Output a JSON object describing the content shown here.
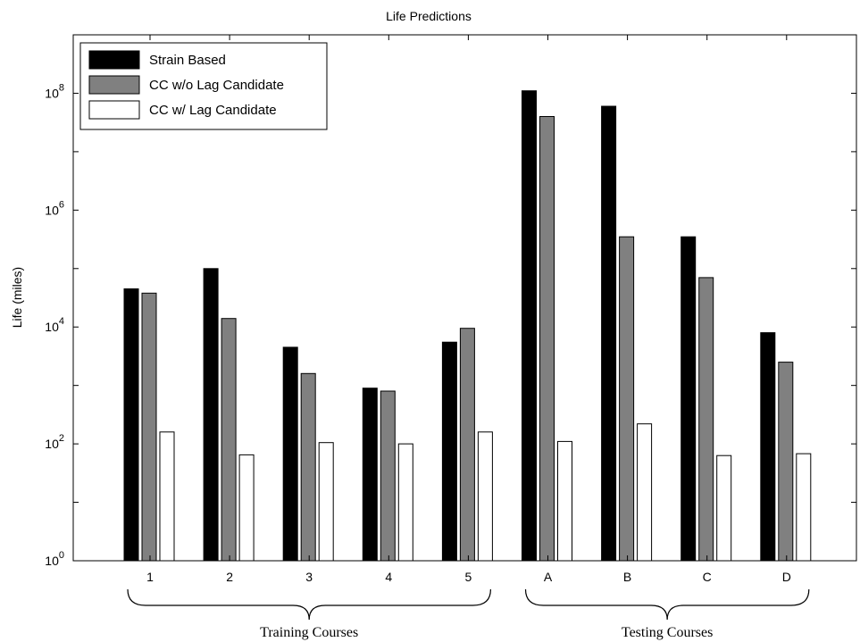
{
  "chart_data": {
    "type": "bar",
    "title": "Life Predictions",
    "xlabel": "",
    "ylabel": "Life (miles)",
    "yscale": "log",
    "ylim": [
      1,
      1000000000
    ],
    "ytick_labels": [
      "10",
      "10",
      "10",
      "10",
      "10"
    ],
    "ytick_exponents": [
      "0",
      "2",
      "4",
      "6",
      "8"
    ],
    "categories": [
      "1",
      "2",
      "3",
      "4",
      "5",
      "A",
      "B",
      "C",
      "D"
    ],
    "series": [
      {
        "name": "Strain Based",
        "color": "#000000",
        "values": [
          45000,
          100000,
          4500,
          900,
          5500,
          110000000,
          60000000,
          350000,
          8000
        ]
      },
      {
        "name": "CC w/o Lag Candidate",
        "color": "#808080",
        "values": [
          38000,
          14000,
          1600,
          800,
          9500,
          40000000,
          350000,
          70000,
          2500
        ]
      },
      {
        "name": "CC w/ Lag Candidate",
        "color": "#ffffff",
        "values": [
          160,
          65,
          105,
          100,
          160,
          110,
          220,
          63,
          68
        ]
      }
    ],
    "groups": [
      {
        "label": "Training Courses",
        "categories": [
          "1",
          "2",
          "3",
          "4",
          "5"
        ]
      },
      {
        "label": "Testing Courses",
        "categories": [
          "A",
          "B",
          "C",
          "D"
        ]
      }
    ],
    "legend_position": "top-left",
    "grid": false
  }
}
